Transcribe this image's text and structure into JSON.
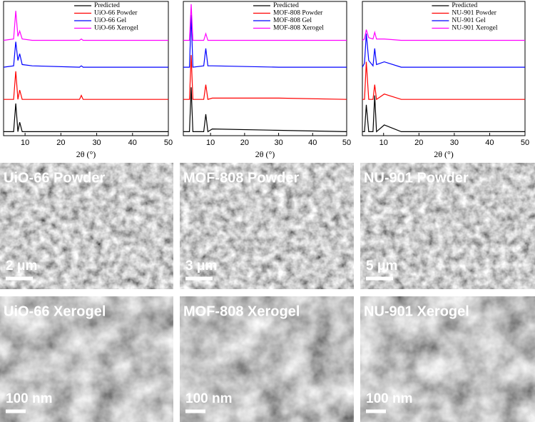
{
  "chart_data": [
    {
      "type": "line",
      "xlabel": "2θ (°)",
      "xlim": [
        4,
        50
      ],
      "ylim": [
        0,
        100
      ],
      "xticks": [
        10,
        20,
        30,
        40,
        50
      ],
      "legend": "top-right",
      "x": [
        4,
        6.8,
        7.4,
        8.0,
        8.5,
        9.2,
        12,
        25.2,
        25.7,
        26.2,
        50
      ],
      "series": [
        {
          "name": "Predicted",
          "color": "#000000",
          "values": [
            3,
            3,
            24,
            3,
            10,
            3,
            3,
            3,
            3,
            3,
            3
          ]
        },
        {
          "name": "UiO-66 Powder",
          "color": "#ff0000",
          "values": [
            27,
            27,
            48,
            27,
            34,
            27,
            27,
            27,
            30,
            27,
            27
          ]
        },
        {
          "name": "UiO-66 Gel",
          "color": "#0000ff",
          "values": [
            51,
            52,
            70,
            56,
            61,
            53,
            52,
            51,
            52,
            51,
            51
          ]
        },
        {
          "name": "UiO-66 Xerogel",
          "color": "#ff00ff",
          "values": [
            71,
            72,
            93,
            74,
            78,
            72,
            71,
            71,
            72,
            71,
            71
          ]
        }
      ]
    },
    {
      "type": "line",
      "xlabel": "2θ (°)",
      "xlim": [
        2,
        50
      ],
      "ylim": [
        0,
        100
      ],
      "xticks": [
        10,
        20,
        30,
        40,
        50
      ],
      "legend": "top-right",
      "x": [
        2,
        3.8,
        4.3,
        4.8,
        8,
        8.6,
        9.2,
        10.5,
        30,
        50
      ],
      "series": [
        {
          "name": "Predicted",
          "color": "#000000",
          "values": [
            3,
            3,
            36,
            3,
            3,
            16,
            3,
            5,
            4,
            3
          ]
        },
        {
          "name": "MOF-808 Powder",
          "color": "#ff0000",
          "values": [
            27,
            27,
            60,
            27,
            27,
            38,
            27,
            28,
            28,
            27
          ]
        },
        {
          "name": "MOF-808 Gel",
          "color": "#0000ff",
          "values": [
            51,
            51,
            90,
            51,
            52,
            65,
            52,
            52,
            51,
            51
          ]
        },
        {
          "name": "MOF-808 Xerogel",
          "color": "#ff00ff",
          "values": [
            71,
            71,
            98,
            71,
            71,
            76,
            71,
            71,
            71,
            71
          ]
        }
      ]
    },
    {
      "type": "line",
      "xlabel": "2θ (°)",
      "xlim": [
        4,
        50
      ],
      "ylim": [
        0,
        100
      ],
      "xticks": [
        10,
        20,
        30,
        40,
        50
      ],
      "legend": "top-right",
      "x": [
        4,
        4.6,
        5.1,
        5.8,
        7,
        7.5,
        8,
        10.2,
        15,
        50
      ],
      "series": [
        {
          "name": "Predicted",
          "color": "#000000",
          "values": [
            3,
            3,
            23,
            3,
            3,
            30,
            3,
            8,
            3,
            3
          ]
        },
        {
          "name": "NU-901 Powder",
          "color": "#ff0000",
          "values": [
            27,
            27,
            55,
            27,
            27,
            38,
            27,
            31,
            27,
            27
          ]
        },
        {
          "name": "NU-901 Gel",
          "color": "#0000ff",
          "values": [
            51,
            54,
            76,
            56,
            52,
            65,
            53,
            55,
            51,
            51
          ]
        },
        {
          "name": "NU-901 Xerogel",
          "color": "#ff00ff",
          "values": [
            71,
            72,
            79,
            73,
            72,
            77,
            72,
            72,
            71,
            71
          ]
        }
      ]
    }
  ],
  "sem_images": [
    {
      "label": "UiO-66 Powder",
      "scale_bar": "2 μm"
    },
    {
      "label": "MOF-808 Powder",
      "scale_bar": "3 μm"
    },
    {
      "label": "NU-901 Powder",
      "scale_bar": "5 μm"
    },
    {
      "label": "UiO-66 Xerogel",
      "scale_bar": "100 nm"
    },
    {
      "label": "MOF-808 Xerogel",
      "scale_bar": "100 nm"
    },
    {
      "label": "NU-901 Xerogel",
      "scale_bar": "100 nm"
    }
  ]
}
